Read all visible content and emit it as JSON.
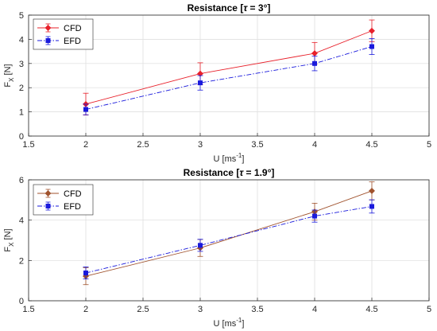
{
  "chart_data": [
    {
      "type": "line",
      "title_prefix": "Resistance [",
      "title_symbol": "τ",
      "title_suffix": " = 3°]",
      "xlabel_main": "U [ms",
      "xlabel_sup": "-1",
      "xlabel_end": "]",
      "ylabel_main": "F",
      "ylabel_sub": "X",
      "ylabel_end": " [N]",
      "xlim": [
        1.5,
        5
      ],
      "ylim": [
        0,
        5
      ],
      "xticks": [
        1.5,
        2,
        2.5,
        3,
        3.5,
        4,
        4.5,
        5
      ],
      "xtick_labels": [
        "1.5",
        "2",
        "2.5",
        "3",
        "3.5",
        "4",
        "4.5",
        "5"
      ],
      "yticks": [
        0,
        1,
        2,
        3,
        4,
        5
      ],
      "ytick_labels": [
        "0",
        "1",
        "2",
        "3",
        "4",
        "5"
      ],
      "grid": true,
      "legend_position": "top-left",
      "series": [
        {
          "name": "CFD",
          "color": "#e8202a",
          "line_style": "solid",
          "marker": "diamond",
          "x": [
            2,
            3,
            4,
            4.5
          ],
          "y": [
            1.32,
            2.58,
            3.42,
            4.35
          ],
          "err": [
            0.45,
            0.45,
            0.45,
            0.45
          ]
        },
        {
          "name": "EFD",
          "color": "#1a1adc",
          "line_style": "dashdot",
          "marker": "square",
          "x": [
            2,
            3,
            4,
            4.5
          ],
          "y": [
            1.1,
            2.2,
            3.0,
            3.7
          ],
          "err": [
            0.22,
            0.3,
            0.3,
            0.33
          ]
        }
      ]
    },
    {
      "type": "line",
      "title_prefix": "Resistance [",
      "title_symbol": "τ",
      "title_suffix": " = 1.9°]",
      "xlabel_main": "U [ms",
      "xlabel_sup": "-1",
      "xlabel_end": "]",
      "ylabel_main": "F",
      "ylabel_sub": "X",
      "ylabel_end": " [N]",
      "xlim": [
        1.5,
        5
      ],
      "ylim": [
        0,
        6
      ],
      "xticks": [
        1.5,
        2,
        2.5,
        3,
        3.5,
        4,
        4.5,
        5
      ],
      "xtick_labels": [
        "1.5",
        "2",
        "2.5",
        "3",
        "3.5",
        "4",
        "4.5",
        "5"
      ],
      "yticks": [
        0,
        2,
        4,
        6
      ],
      "ytick_labels": [
        "0",
        "2",
        "4",
        "6"
      ],
      "grid": true,
      "legend_position": "top-left",
      "series": [
        {
          "name": "CFD",
          "color": "#a0522d",
          "line_style": "solid",
          "marker": "diamond",
          "x": [
            2,
            3,
            4,
            4.5
          ],
          "y": [
            1.22,
            2.62,
            4.42,
            5.45
          ],
          "err": [
            0.42,
            0.42,
            0.42,
            0.45
          ]
        },
        {
          "name": "EFD",
          "color": "#1a1adc",
          "line_style": "dashdot",
          "marker": "square",
          "x": [
            2,
            3,
            4,
            4.5
          ],
          "y": [
            1.38,
            2.75,
            4.2,
            4.68
          ],
          "err": [
            0.3,
            0.3,
            0.3,
            0.33
          ]
        }
      ]
    }
  ]
}
